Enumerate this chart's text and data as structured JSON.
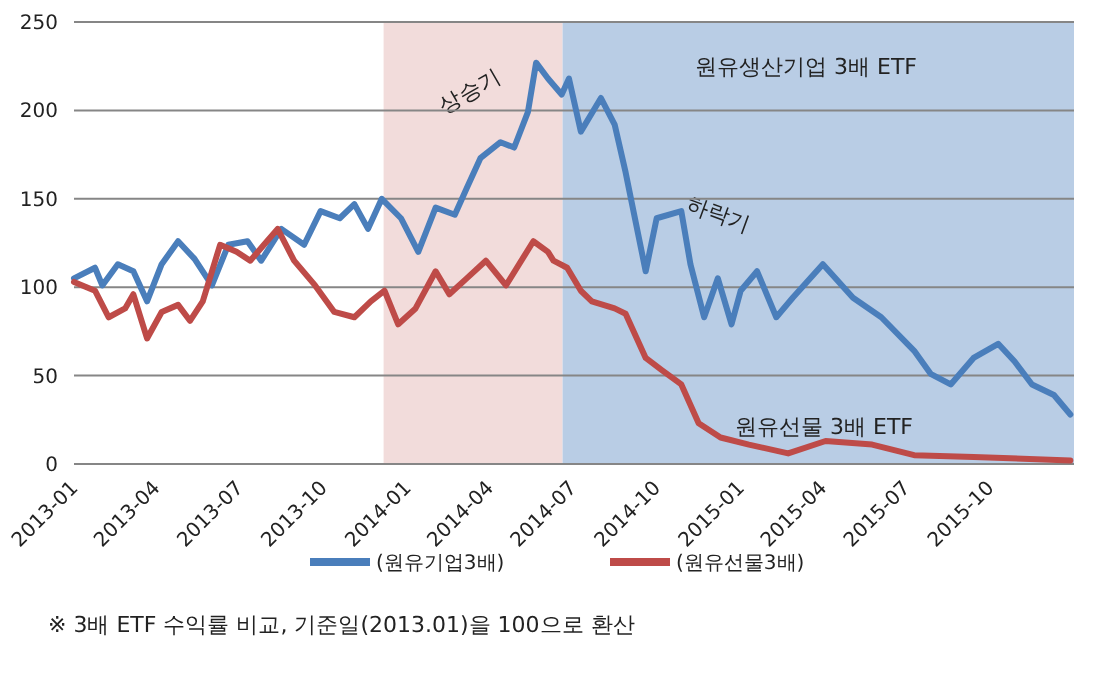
{
  "chart_data": {
    "type": "line",
    "xlim": [
      "2013-01-01",
      "2016-01-01"
    ],
    "xticks": [
      {
        "value": "2013-01-01",
        "label": "2013-01"
      },
      {
        "value": "2013-04-01",
        "label": "2013-04"
      },
      {
        "value": "2013-07-01",
        "label": "2013-07"
      },
      {
        "value": "2013-10-01",
        "label": "2013-10"
      },
      {
        "value": "2014-01-01",
        "label": "2014-01"
      },
      {
        "value": "2014-04-01",
        "label": "2014-04"
      },
      {
        "value": "2014-07-01",
        "label": "2014-07"
      },
      {
        "value": "2014-10-01",
        "label": "2014-10"
      },
      {
        "value": "2015-01-01",
        "label": "2015-01"
      },
      {
        "value": "2015-04-01",
        "label": "2015-04"
      },
      {
        "value": "2015-07-01",
        "label": "2015-07"
      },
      {
        "value": "2015-10-01",
        "label": "2015-10"
      }
    ],
    "ylim": [
      0,
      250
    ],
    "yticks": [
      0,
      50,
      100,
      150,
      200,
      250
    ],
    "grid": "y",
    "legend": "bottom",
    "bands": [
      {
        "axis": "x",
        "from": "2013-12-06",
        "to": "2014-06-20",
        "label": "상승기",
        "color": "#f2dcdb"
      },
      {
        "axis": "x",
        "from": "2014-06-20",
        "to": "2016-01-01",
        "label": "하락기",
        "color": "#b9cde5"
      }
    ],
    "series": [
      {
        "name": "(원유기업3배)",
        "color": "#4a7ebb",
        "x": [
          "2013-01-01",
          "2013-01-24",
          "2013-02-01",
          "2013-02-18",
          "2013-03-07",
          "2013-03-22",
          "2013-04-07",
          "2013-04-25",
          "2013-05-13",
          "2013-06-01",
          "2013-06-19",
          "2013-07-10",
          "2013-07-25",
          "2013-08-16",
          "2013-09-10",
          "2013-09-28",
          "2013-10-19",
          "2013-11-04",
          "2013-11-19",
          "2013-12-04",
          "2013-12-25",
          "2014-01-13",
          "2014-02-01",
          "2014-02-22",
          "2014-03-07",
          "2014-03-22",
          "2014-04-13",
          "2014-04-28",
          "2014-05-13",
          "2014-05-22",
          "2014-06-04",
          "2014-06-19",
          "2014-06-27",
          "2014-07-10",
          "2014-08-01",
          "2014-08-16",
          "2014-08-28",
          "2014-09-19",
          "2014-10-01",
          "2014-10-28",
          "2014-11-07",
          "2014-11-22",
          "2014-12-07",
          "2014-12-22",
          "2015-01-01",
          "2015-01-19",
          "2015-02-09",
          "2015-02-27",
          "2015-04-01",
          "2015-05-04",
          "2015-06-04",
          "2015-07-10",
          "2015-07-28",
          "2015-08-19",
          "2015-09-13",
          "2015-10-10",
          "2015-10-28",
          "2015-11-16",
          "2015-12-10",
          "2015-12-28"
        ],
        "values": [
          105,
          111,
          101,
          113,
          109,
          92,
          113,
          126,
          116,
          101,
          124,
          126,
          115,
          133,
          124,
          143,
          139,
          147,
          133,
          150,
          139,
          120,
          145,
          141,
          156,
          173,
          182,
          179,
          199,
          227,
          218,
          209,
          218,
          188,
          207,
          192,
          165,
          109,
          139,
          143,
          113,
          83,
          105,
          79,
          98,
          109,
          83,
          94,
          113,
          94,
          83,
          64,
          51,
          45,
          60,
          68,
          58,
          45,
          39,
          28
        ]
      },
      {
        "name": "(원유선물3배)",
        "color": "#be4b48",
        "x": [
          "2013-01-01",
          "2013-01-24",
          "2013-02-08",
          "2013-02-26",
          "2013-03-07",
          "2013-03-22",
          "2013-04-07",
          "2013-04-25",
          "2013-05-08",
          "2013-05-22",
          "2013-06-10",
          "2013-06-28",
          "2013-07-13",
          "2013-07-28",
          "2013-08-12",
          "2013-08-30",
          "2013-09-22",
          "2013-10-13",
          "2013-11-04",
          "2013-11-22",
          "2013-12-07",
          "2013-12-22",
          "2014-01-10",
          "2014-02-01",
          "2014-02-16",
          "2014-03-07",
          "2014-03-28",
          "2014-04-19",
          "2014-05-19",
          "2014-06-04",
          "2014-06-10",
          "2014-06-25",
          "2014-07-10",
          "2014-07-22",
          "2014-08-16",
          "2014-08-28",
          "2014-09-19",
          "2014-10-07",
          "2014-10-28",
          "2014-11-16",
          "2014-12-10",
          "2015-01-10",
          "2015-02-22",
          "2015-04-04",
          "2015-05-25",
          "2015-07-10",
          "2015-09-13",
          "2015-12-28"
        ],
        "values": [
          103,
          98,
          83,
          88,
          96,
          71,
          86,
          90,
          81,
          92,
          124,
          120,
          115,
          124,
          133,
          115,
          101,
          86,
          83,
          92,
          98,
          79,
          88,
          109,
          96,
          105,
          115,
          101,
          126,
          120,
          115,
          111,
          98,
          92,
          88,
          85,
          60,
          53,
          45,
          23,
          15,
          11,
          6,
          13,
          11,
          5,
          4,
          2
        ]
      }
    ],
    "annotations": [
      "원유생산기업 3배 ETF",
      "원유선물 3배 ETF",
      "※ 3배 ETF 수익률 비교, 기준일(2013.01)을 100으로 환산"
    ]
  }
}
